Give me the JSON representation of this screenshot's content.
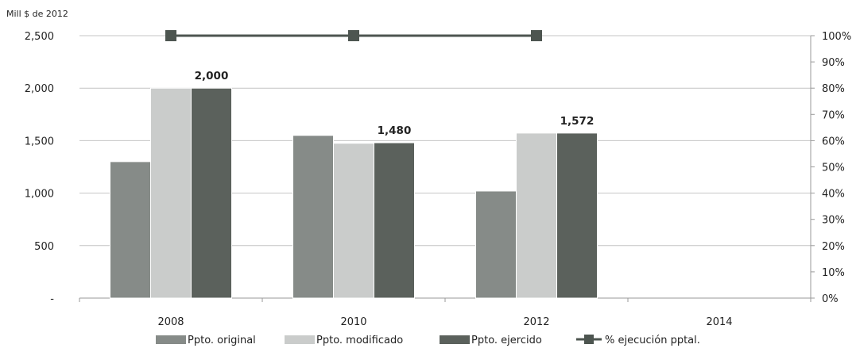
{
  "chart_data": {
    "type": "bar",
    "unit_label": "Mill $ de 2012",
    "categories": [
      "2008",
      "2010",
      "2012",
      "2014"
    ],
    "y_left": {
      "min": 0,
      "max": 2500,
      "ticks": [
        0,
        500,
        1000,
        1500,
        2000,
        2500
      ],
      "tick_labels": [
        "-",
        "500",
        "1,000",
        "1,500",
        "2,000",
        "2,500"
      ]
    },
    "y_right": {
      "min": 0,
      "max": 100,
      "ticks": [
        0,
        10,
        20,
        30,
        40,
        50,
        60,
        70,
        80,
        90,
        100
      ],
      "tick_labels": [
        "0%",
        "10%",
        "20%",
        "30%",
        "40%",
        "50%",
        "60%",
        "70%",
        "80%",
        "90%",
        "100%"
      ]
    },
    "series": [
      {
        "name": "Ppto. original",
        "type": "bar",
        "axis": "left",
        "color": "#868b88",
        "values": [
          1300,
          1550,
          1020,
          null
        ]
      },
      {
        "name": "Ppto. modificado",
        "type": "bar",
        "axis": "left",
        "color": "#cacccb",
        "values": [
          2000,
          1475,
          1572,
          null
        ]
      },
      {
        "name": "Ppto. ejercido",
        "type": "bar",
        "axis": "left",
        "color": "#5b615c",
        "values": [
          2000,
          1480,
          1572,
          null
        ],
        "data_labels": [
          "2,000",
          "1,480",
          "1,572",
          null
        ]
      },
      {
        "name": "% ejecución pptal.",
        "type": "line",
        "axis": "right",
        "color": "#4d5550",
        "values": [
          100,
          100,
          100,
          null
        ]
      }
    ],
    "legend_position": "bottom",
    "grid": true
  }
}
